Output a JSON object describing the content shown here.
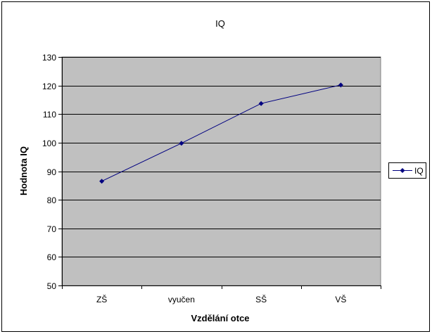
{
  "chart_data": {
    "type": "line",
    "title": "IQ",
    "xlabel": "Vzdělání otce",
    "ylabel": "Hodnota IQ",
    "categories": [
      "ZŠ",
      "vyučen",
      "SŠ",
      "VŠ"
    ],
    "series": [
      {
        "name": "IQ",
        "values": [
          86.5,
          99.8,
          113.7,
          120.2
        ]
      }
    ],
    "ylim": [
      50,
      130
    ],
    "yticks": [
      50,
      60,
      70,
      80,
      90,
      100,
      110,
      120,
      130
    ],
    "grid": true,
    "legend": "right",
    "colors": {
      "plot_background": "#C0C0C0",
      "series_line": "#000080",
      "gridline": "#000000"
    }
  }
}
